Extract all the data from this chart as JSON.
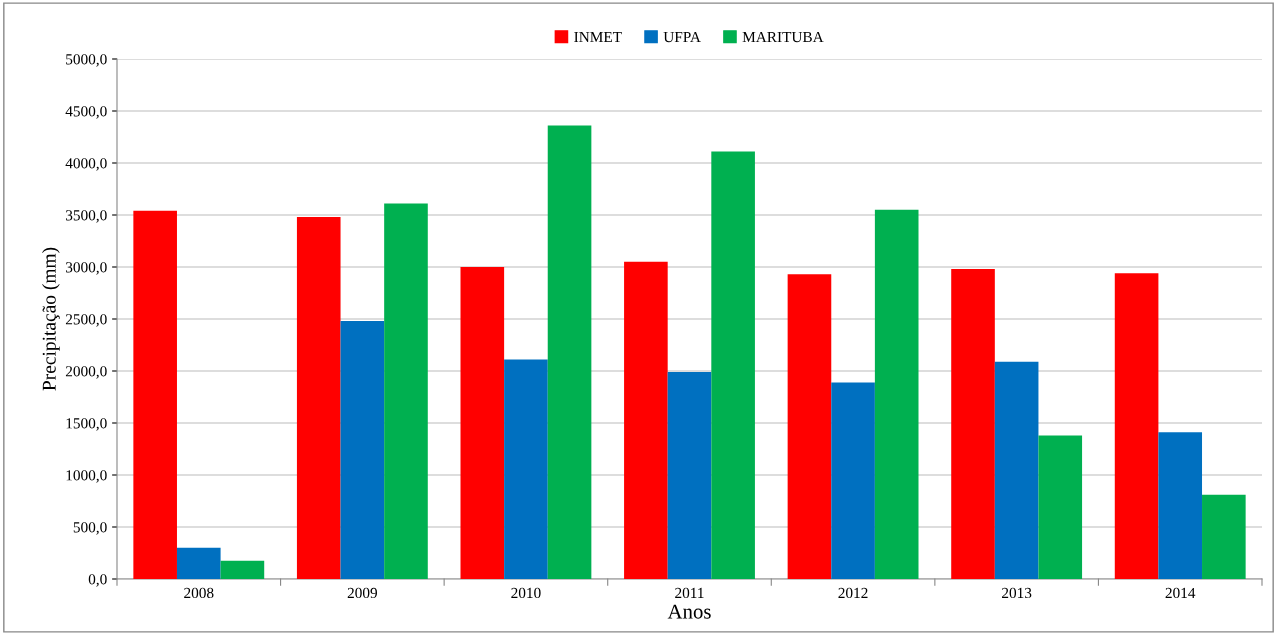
{
  "chart_data": {
    "type": "bar",
    "xlabel": "Anos",
    "ylabel": "Precipitação (mm)",
    "categories": [
      "2008",
      "2009",
      "2010",
      "2011",
      "2012",
      "2013",
      "2014"
    ],
    "series": [
      {
        "name": "INMET",
        "color": "#ff0000",
        "values": [
          3540,
          3480,
          3000,
          3050,
          2930,
          2980,
          2940
        ]
      },
      {
        "name": "UFPA",
        "color": "#0070c0",
        "values": [
          300,
          2480,
          2110,
          1990,
          1890,
          2090,
          1410
        ]
      },
      {
        "name": "MARITUBA",
        "color": "#00b050",
        "values": [
          175,
          3610,
          4360,
          4110,
          3550,
          1380,
          810
        ]
      }
    ],
    "ylim": [
      0,
      5000
    ],
    "yticks": [
      {
        "value": 0,
        "label": "0,0"
      },
      {
        "value": 500,
        "label": "500,0"
      },
      {
        "value": 1000,
        "label": "1000,0"
      },
      {
        "value": 1500,
        "label": "1500,0"
      },
      {
        "value": 2000,
        "label": "2000,0"
      },
      {
        "value": 2500,
        "label": "2500,0"
      },
      {
        "value": 3000,
        "label": "3000,0"
      },
      {
        "value": 3500,
        "label": "3500,0"
      },
      {
        "value": 4000,
        "label": "4000,0"
      },
      {
        "value": 4500,
        "label": "4500,0"
      },
      {
        "value": 5000,
        "label": "5000,0"
      }
    ],
    "grid": "y",
    "legend": "top"
  }
}
